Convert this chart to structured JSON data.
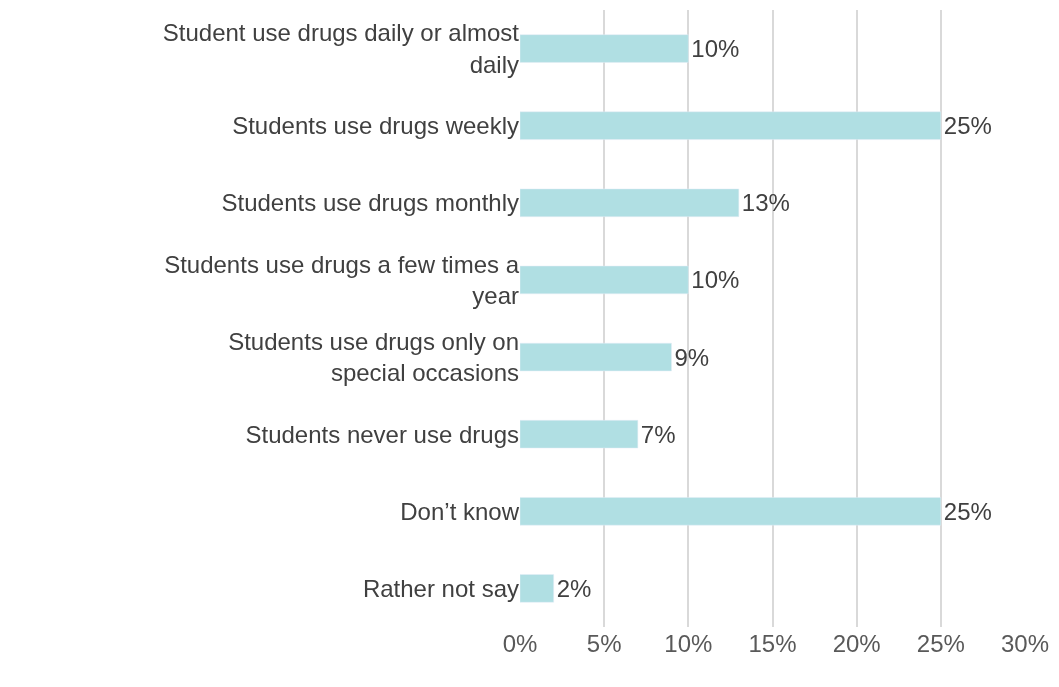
{
  "chart_data": {
    "type": "bar",
    "orientation": "horizontal",
    "categories": [
      "Student use drugs daily or almost daily",
      "Students use drugs weekly",
      "Students use drugs monthly",
      "Students use drugs a few times a year",
      "Students use drugs only on special occasions",
      "Students never use drugs",
      "Don’t know",
      "Rather not say"
    ],
    "values": [
      10,
      25,
      13,
      10,
      9,
      7,
      25,
      2
    ],
    "value_labels": [
      "10%",
      "25%",
      "13%",
      "10%",
      "9%",
      "7%",
      "25%",
      "2%"
    ],
    "color": "#b0dfe3",
    "xlim": [
      0,
      30
    ],
    "xticks": [
      {
        "value": 0,
        "label": "0%"
      },
      {
        "value": 5,
        "label": "5%"
      },
      {
        "value": 10,
        "label": "10%"
      },
      {
        "value": 15,
        "label": "15%"
      },
      {
        "value": 20,
        "label": "20%"
      },
      {
        "value": 25,
        "label": "25%"
      },
      {
        "value": 30,
        "label": "30%"
      }
    ],
    "grid": "x",
    "legend": false
  }
}
